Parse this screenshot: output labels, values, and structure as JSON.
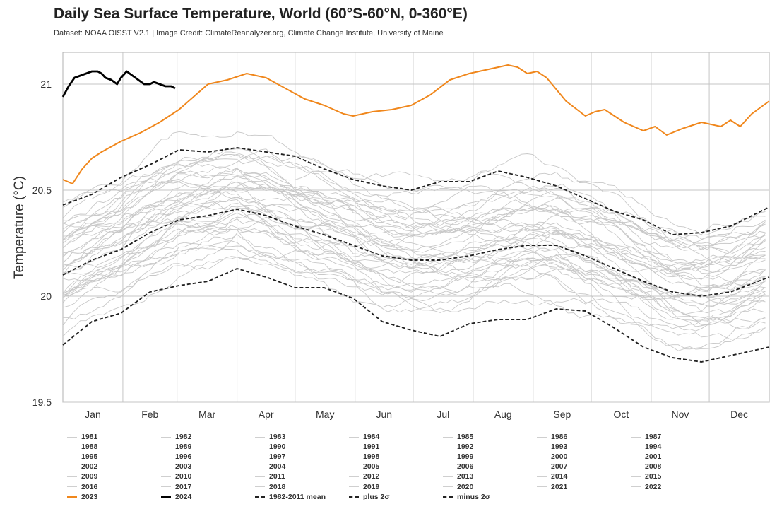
{
  "header": {
    "title": "Daily Sea Surface Temperature, World (60°S-60°N, 0-360°E)",
    "subtitle": "Dataset: NOAA OISST V2.1 | Image Credit: ClimateReanalyzer.org, Climate Change Institute, University of Maine"
  },
  "chart_data": {
    "type": "line",
    "title": "Daily Sea Surface Temperature, World (60°S-60°N, 0-360°E)",
    "ylabel": "Temperature (°C)",
    "xlabel": "",
    "ylim": [
      19.5,
      21.15
    ],
    "xlim": [
      0,
      365
    ],
    "yticks": [
      19.5,
      20,
      20.5,
      21
    ],
    "ytick_labels": [
      "19.5",
      "20",
      "20.5",
      "21"
    ],
    "month_labels": [
      "Jan",
      "Feb",
      "Mar",
      "Apr",
      "May",
      "Jun",
      "Jul",
      "Aug",
      "Sep",
      "Oct",
      "Nov",
      "Dec"
    ],
    "grid": true,
    "legend_position": "bottom",
    "colors": {
      "history": "#c8c8c8",
      "y2023": "#f0871c",
      "y2024": "#000000",
      "stats": "#222222"
    },
    "series": [
      {
        "name": "2023",
        "x": [
          0,
          5,
          10,
          15,
          20,
          30,
          40,
          50,
          60,
          65,
          75,
          85,
          95,
          105,
          115,
          125,
          135,
          145,
          150,
          160,
          170,
          180,
          190,
          200,
          210,
          220,
          230,
          235,
          240,
          245,
          250,
          260,
          270,
          275,
          280,
          290,
          300,
          306,
          312,
          320,
          330,
          340,
          345,
          350,
          356,
          365
        ],
        "values": [
          20.55,
          20.53,
          20.6,
          20.65,
          20.68,
          20.73,
          20.77,
          20.82,
          20.88,
          20.92,
          21.0,
          21.02,
          21.05,
          21.03,
          20.98,
          20.93,
          20.9,
          20.86,
          20.85,
          20.87,
          20.88,
          20.9,
          20.95,
          21.02,
          21.05,
          21.07,
          21.09,
          21.08,
          21.05,
          21.06,
          21.03,
          20.92,
          20.85,
          20.87,
          20.88,
          20.82,
          20.78,
          20.8,
          20.76,
          20.79,
          20.82,
          20.8,
          20.83,
          20.8,
          20.86,
          20.92
        ]
      },
      {
        "name": "2024",
        "x": [
          0,
          3,
          6,
          9,
          12,
          15,
          18,
          20,
          22,
          25,
          28,
          30,
          33,
          36,
          39,
          42,
          45,
          47,
          50,
          53,
          56,
          58
        ],
        "values": [
          20.94,
          20.99,
          21.03,
          21.04,
          21.05,
          21.06,
          21.06,
          21.05,
          21.03,
          21.02,
          21.0,
          21.03,
          21.06,
          21.04,
          21.02,
          21.0,
          21.0,
          21.01,
          21.0,
          20.99,
          20.99,
          20.98
        ]
      },
      {
        "name": "1982-2011 mean",
        "x": [
          0,
          15,
          30,
          45,
          60,
          75,
          90,
          105,
          120,
          135,
          150,
          165,
          180,
          195,
          210,
          225,
          240,
          255,
          270,
          285,
          300,
          315,
          330,
          345,
          365
        ],
        "values": [
          20.1,
          20.17,
          20.22,
          20.3,
          20.36,
          20.38,
          20.41,
          20.38,
          20.33,
          20.29,
          20.24,
          20.19,
          20.17,
          20.17,
          20.19,
          20.22,
          20.24,
          20.24,
          20.19,
          20.13,
          20.07,
          20.02,
          20.0,
          20.02,
          20.09
        ]
      },
      {
        "name": "plus 2σ",
        "x": [
          0,
          15,
          30,
          45,
          60,
          75,
          90,
          105,
          120,
          135,
          150,
          165,
          180,
          195,
          210,
          225,
          240,
          255,
          270,
          285,
          300,
          315,
          330,
          345,
          365
        ],
        "values": [
          20.43,
          20.48,
          20.56,
          20.62,
          20.69,
          20.68,
          20.7,
          20.68,
          20.66,
          20.6,
          20.55,
          20.52,
          20.5,
          20.54,
          20.54,
          20.59,
          20.56,
          20.52,
          20.46,
          20.4,
          20.36,
          20.29,
          20.3,
          20.33,
          20.42
        ]
      },
      {
        "name": "minus 2σ",
        "x": [
          0,
          15,
          30,
          45,
          60,
          75,
          90,
          105,
          120,
          135,
          150,
          165,
          180,
          195,
          210,
          225,
          240,
          255,
          270,
          285,
          300,
          315,
          330,
          345,
          365
        ],
        "values": [
          19.77,
          19.88,
          19.92,
          20.02,
          20.05,
          20.07,
          20.13,
          20.09,
          20.04,
          20.04,
          19.99,
          19.88,
          19.84,
          19.81,
          19.87,
          19.89,
          19.89,
          19.94,
          19.93,
          19.85,
          19.76,
          19.71,
          19.69,
          19.72,
          19.76
        ]
      }
    ],
    "history_years": [
      1981,
      1982,
      1983,
      1984,
      1985,
      1986,
      1987,
      1988,
      1989,
      1990,
      1991,
      1992,
      1993,
      1994,
      1995,
      1996,
      1997,
      1998,
      1999,
      2000,
      2001,
      2002,
      2003,
      2004,
      2005,
      2006,
      2007,
      2008,
      2009,
      2010,
      2011,
      2012,
      2013,
      2014,
      2015,
      2016,
      2017,
      2018,
      2019,
      2020,
      2021,
      2022
    ]
  },
  "legend": {
    "columns": 7,
    "items": [
      "1981",
      "1982",
      "1983",
      "1984",
      "1985",
      "1986",
      "1987",
      "1988",
      "1989",
      "1990",
      "1991",
      "1992",
      "1993",
      "1994",
      "1995",
      "1996",
      "1997",
      "1998",
      "1999",
      "2000",
      "2001",
      "2002",
      "2003",
      "2004",
      "2005",
      "2006",
      "2007",
      "2008",
      "2009",
      "2010",
      "2011",
      "2012",
      "2013",
      "2014",
      "2015",
      "2016",
      "2017",
      "2018",
      "2019",
      "2020",
      "2021",
      "2022",
      "2023",
      "2024",
      "1982-2011 mean",
      "plus 2σ",
      "minus 2σ"
    ]
  }
}
